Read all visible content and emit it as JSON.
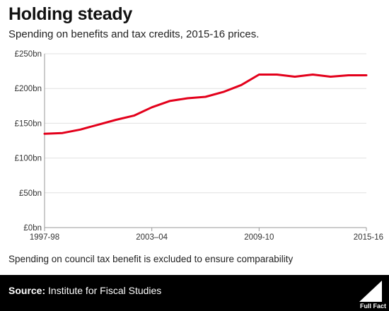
{
  "chart_data": {
    "type": "line",
    "title": "Holding steady",
    "subtitle": "Spending on benefits and tax credits, 2015-16 prices.",
    "x": [
      "1997-98",
      "1998-99",
      "1999-00",
      "2000-01",
      "2001-02",
      "2002-03",
      "2003-04",
      "2004-05",
      "2005-06",
      "2006-07",
      "2007-08",
      "2008-09",
      "2009-10",
      "2010-11",
      "2011-12",
      "2012-13",
      "2013-14",
      "2014-15",
      "2015-16"
    ],
    "x_tick_labels": [
      "1997-98",
      "2003–04",
      "2009-10",
      "2015-16"
    ],
    "series": [
      {
        "values": [
          135,
          136,
          141,
          148,
          155,
          161,
          173,
          182,
          186,
          188,
          195,
          205,
          220,
          220,
          217,
          220,
          217,
          219,
          219
        ]
      }
    ],
    "ylim": [
      0,
      250
    ],
    "y_ticks": [
      0,
      50,
      100,
      150,
      200,
      250
    ],
    "y_tick_labels": [
      "£0bn",
      "£50bn",
      "£100bn",
      "£150bn",
      "£200bn",
      "£250bn"
    ],
    "xlabel": "",
    "ylabel": "",
    "grid": "horizontal",
    "line_color": "#e3001b",
    "axis_color": "#999999",
    "grid_color": "#e0e0e0"
  },
  "note": "Spending on council tax benefit is excluded to ensure comparability",
  "footer": {
    "source_label": "Source:",
    "source_text": " Institute for Fiscal Studies",
    "logo_text": "Full Fact"
  }
}
